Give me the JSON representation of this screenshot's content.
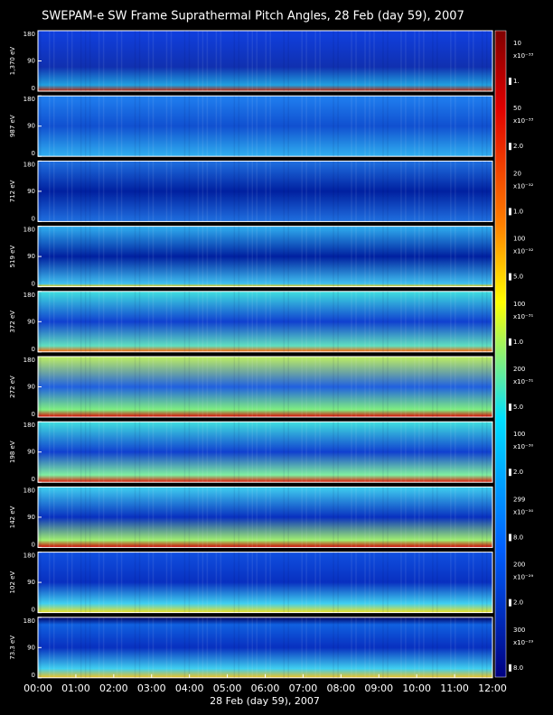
{
  "title": "SWEPAM-e SW Frame Suprathermal Pitch Angles, 28 Feb (day  59), 2007",
  "x_label": "28 Feb (day  59), 2007",
  "x_ticks": [
    "00:00",
    "01:00",
    "02:00",
    "03:00",
    "04:00",
    "05:00",
    "06:00",
    "07:00",
    "08:00",
    "09:00",
    "10:00",
    "11:00",
    "12:00"
  ],
  "y_ticks": [
    0,
    90,
    180
  ],
  "panels": [
    {
      "label": "1,370 eV",
      "colorbar": {
        "max": "10",
        "scale": "x10⁻³³",
        "min": "1."
      }
    },
    {
      "label": "987 eV",
      "colorbar": {
        "max": "50",
        "scale": "x10⁻³³",
        "min": "2.0"
      }
    },
    {
      "label": "712 eV",
      "colorbar": {
        "max": "20",
        "scale": "x10⁻³²",
        "min": "1.0"
      }
    },
    {
      "label": "519 eV",
      "colorbar": {
        "max": "100",
        "scale": "x10⁻³²",
        "min": "5.0"
      }
    },
    {
      "label": "372 eV",
      "colorbar": {
        "max": "100",
        "scale": "x10⁻³¹",
        "min": "1.0"
      }
    },
    {
      "label": "272 eV",
      "colorbar": {
        "max": "200",
        "scale": "x10⁻³¹",
        "min": "5.0"
      }
    },
    {
      "label": "198 eV",
      "colorbar": {
        "max": "100",
        "scale": "x10⁻³⁰",
        "min": "2.0"
      }
    },
    {
      "label": "142 eV",
      "colorbar": {
        "max": "299",
        "scale": "x10⁻³⁰",
        "min": "8.0"
      }
    },
    {
      "label": "102 eV",
      "colorbar": {
        "max": "200",
        "scale": "x10⁻²⁹",
        "min": "2.0"
      }
    },
    {
      "label": "73.3 eV",
      "colorbar": {
        "max": "300",
        "scale": "x10⁻²⁹",
        "min": "8.0"
      }
    }
  ]
}
